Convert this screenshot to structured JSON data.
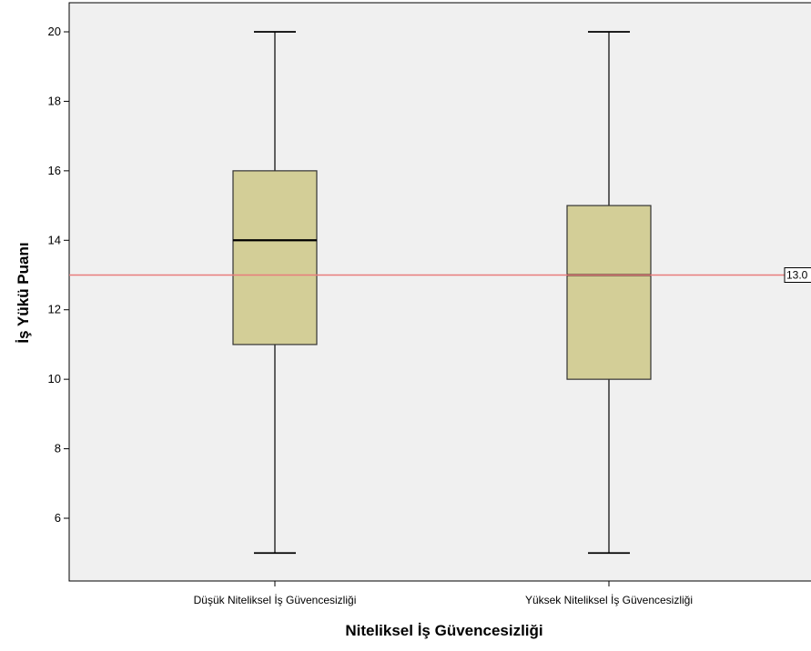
{
  "chart_data": {
    "type": "boxplot",
    "title": "",
    "xlabel": "Niteliksel İş Güvencesizliği",
    "ylabel": "İş Yükü Puanı",
    "ylim": [
      4.0,
      21.0
    ],
    "yticks": [
      6,
      8,
      10,
      12,
      14,
      16,
      18,
      20
    ],
    "categories": [
      "Düşük Niteliksel İş Güvencesizliği",
      "Yüksek Niteliksel İş Güvencesizliği"
    ],
    "boxes": [
      {
        "category": "Düşük Niteliksel İş Güvencesizliği",
        "min": 5,
        "q1": 11,
        "median": 14,
        "q3": 16,
        "max": 20
      },
      {
        "category": "Yüksek Niteliksel İş Güvencesizliği",
        "min": 5,
        "q1": 10,
        "median": 13,
        "q3": 15,
        "max": 20
      }
    ],
    "reference_line": {
      "value": 13.0,
      "label": "13.0"
    },
    "grid": false,
    "colors": {
      "plot_background": "#f0f0f0",
      "box_fill": "#d3ce97",
      "reference_line": "#e87c7c",
      "median": "#000000"
    }
  }
}
